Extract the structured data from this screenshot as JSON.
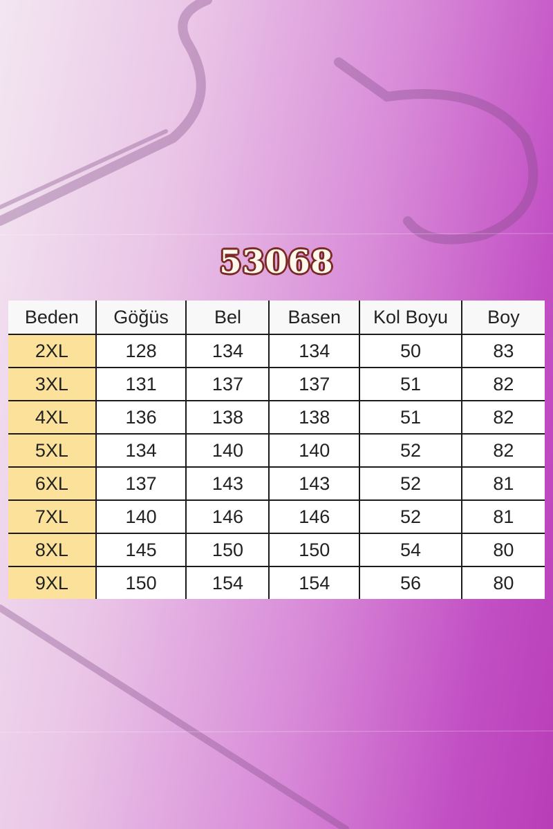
{
  "title": "53068",
  "table": {
    "headers": [
      "Beden",
      "Göğüs",
      "Bel",
      "Basen",
      "Kol Boyu",
      "Boy"
    ],
    "rows": [
      [
        "2XL",
        "128",
        "134",
        "134",
        "50",
        "83"
      ],
      [
        "3XL",
        "131",
        "137",
        "137",
        "51",
        "82"
      ],
      [
        "4XL",
        "136",
        "138",
        "138",
        "51",
        "82"
      ],
      [
        "5XL",
        "134",
        "140",
        "140",
        "52",
        "82"
      ],
      [
        "6XL",
        "137",
        "143",
        "143",
        "52",
        "81"
      ],
      [
        "7XL",
        "140",
        "146",
        "146",
        "52",
        "81"
      ],
      [
        "8XL",
        "145",
        "150",
        "150",
        "54",
        "80"
      ],
      [
        "9XL",
        "150",
        "154",
        "154",
        "56",
        "80"
      ]
    ]
  },
  "colors": {
    "size_column": "#fbe19a",
    "title_outline": "#7a2a22",
    "background_accent": "#c24fc4"
  }
}
